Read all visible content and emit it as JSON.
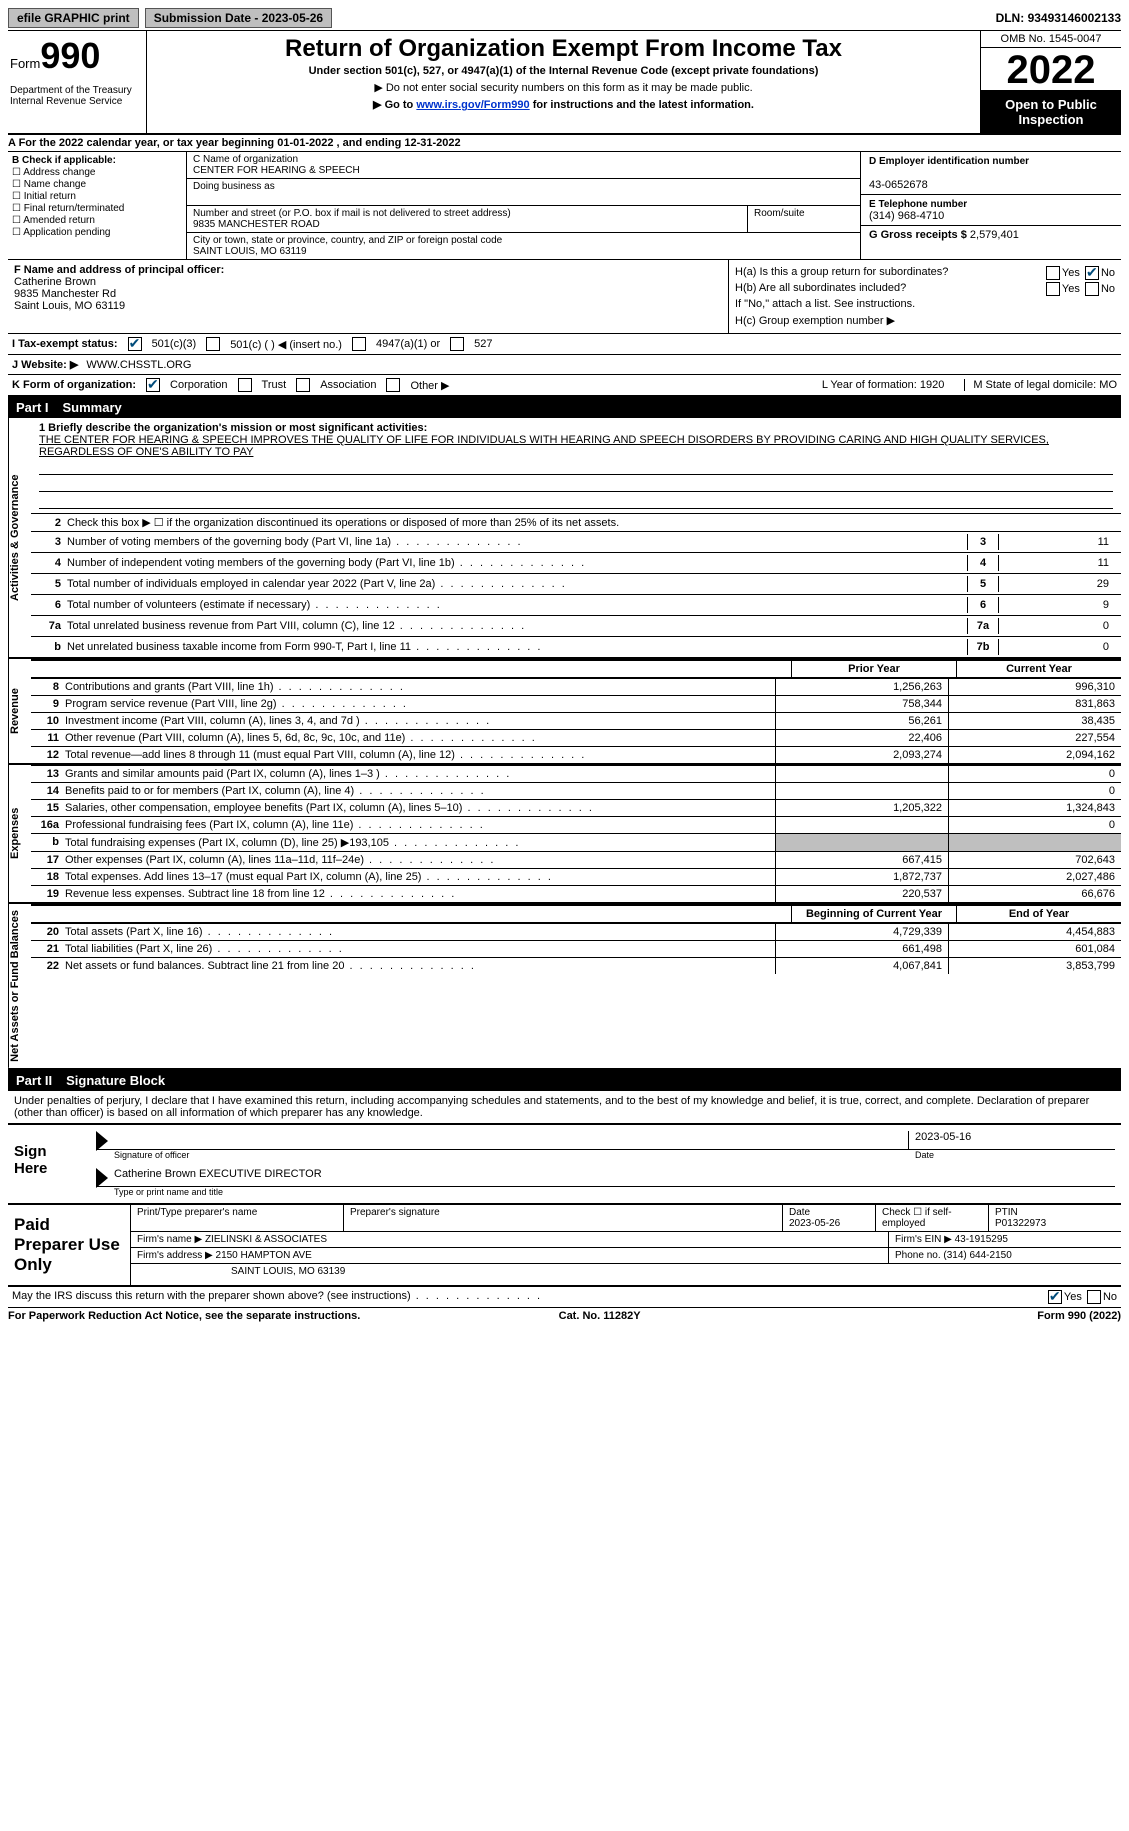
{
  "topbar": {
    "efile": "efile GRAPHIC print",
    "submission_label": "Submission Date - ",
    "submission_date": "2023-05-26",
    "dln_label": "DLN: ",
    "dln": "93493146002133"
  },
  "header": {
    "form_word": "Form",
    "form_num": "990",
    "dept": "Department of the Treasury\nInternal Revenue Service",
    "title": "Return of Organization Exempt From Income Tax",
    "subtitle": "Under section 501(c), 527, or 4947(a)(1) of the Internal Revenue Code (except private foundations)",
    "note1": "▶ Do not enter social security numbers on this form as it may be made public.",
    "note2_pre": "▶ Go to ",
    "note2_link": "www.irs.gov/Form990",
    "note2_post": " for instructions and the latest information.",
    "omb": "OMB No. 1545-0047",
    "year": "2022",
    "otp": "Open to Public Inspection"
  },
  "period": {
    "text_pre": "A For the 2022 calendar year, or tax year beginning ",
    "begin": "01-01-2022",
    "mid": " , and ending ",
    "end": "12-31-2022"
  },
  "boxB": {
    "label": "B Check if applicable:",
    "items": [
      "Address change",
      "Name change",
      "Initial return",
      "Final return/terminated",
      "Amended return",
      "Application pending"
    ]
  },
  "boxC": {
    "name_lbl": "C Name of organization",
    "name": "CENTER FOR HEARING & SPEECH",
    "dba_lbl": "Doing business as",
    "street_lbl": "Number and street (or P.O. box if mail is not delivered to street address)",
    "street": "9835 MANCHESTER ROAD",
    "room_lbl": "Room/suite",
    "city_lbl": "City or town, state or province, country, and ZIP or foreign postal code",
    "city": "SAINT LOUIS, MO  63119"
  },
  "boxD": {
    "ein_lbl": "D Employer identification number",
    "ein": "43-0652678",
    "tel_lbl": "E Telephone number",
    "tel": "(314) 968-4710",
    "gross_lbl": "G Gross receipts $ ",
    "gross": "2,579,401"
  },
  "boxF": {
    "lbl": "F Name and address of principal officer:",
    "name": "Catherine Brown",
    "addr1": "9835 Manchester Rd",
    "addr2": "Saint Louis, MO  63119"
  },
  "boxH": {
    "a": "H(a)  Is this a group return for subordinates?",
    "b": "H(b)  Are all subordinates included?",
    "bnote": "If \"No,\" attach a list. See instructions.",
    "c": "H(c)  Group exemption number ▶"
  },
  "status": {
    "lbl": "I  Tax-exempt status:",
    "opts": [
      "501(c)(3)",
      "501(c) (  ) ◀ (insert no.)",
      "4947(a)(1) or",
      "527"
    ]
  },
  "website": {
    "lbl": "J  Website: ▶",
    "val": "WWW.CHSSTL.ORG"
  },
  "korg": {
    "lbl": "K Form of organization:",
    "opts": [
      "Corporation",
      "Trust",
      "Association",
      "Other ▶"
    ],
    "L": "L Year of formation: 1920",
    "M": "M State of legal domicile: MO"
  },
  "part1": {
    "pn": "Part I",
    "title": "Summary"
  },
  "summary": {
    "l1_lbl": "1  Briefly describe the organization's mission or most significant activities:",
    "l1_text": "THE CENTER FOR HEARING & SPEECH IMPROVES THE QUALITY OF LIFE FOR INDIVIDUALS WITH HEARING AND SPEECH DISORDERS BY PROVIDING CARING AND HIGH QUALITY SERVICES, REGARDLESS OF ONE'S ABILITY TO PAY",
    "l2": "Check this box ▶ ☐ if the organization discontinued its operations or disposed of more than 25% of its net assets.",
    "lines": [
      {
        "n": "3",
        "t": "Number of voting members of the governing body (Part VI, line 1a)",
        "box": "3",
        "v": "11"
      },
      {
        "n": "4",
        "t": "Number of independent voting members of the governing body (Part VI, line 1b)",
        "box": "4",
        "v": "11"
      },
      {
        "n": "5",
        "t": "Total number of individuals employed in calendar year 2022 (Part V, line 2a)",
        "box": "5",
        "v": "29"
      },
      {
        "n": "6",
        "t": "Total number of volunteers (estimate if necessary)",
        "box": "6",
        "v": "9"
      },
      {
        "n": "7a",
        "t": "Total unrelated business revenue from Part VIII, column (C), line 12",
        "box": "7a",
        "v": "0"
      },
      {
        "n": "b",
        "t": "Net unrelated business taxable income from Form 990-T, Part I, line 11",
        "box": "7b",
        "v": "0"
      }
    ]
  },
  "vtabs": {
    "ag": "Activities & Governance",
    "rev": "Revenue",
    "exp": "Expenses",
    "net": "Net Assets or Fund Balances"
  },
  "fin_hdr": {
    "prior": "Prior Year",
    "current": "Current Year"
  },
  "revenue": [
    {
      "n": "8",
      "t": "Contributions and grants (Part VIII, line 1h)",
      "p": "1,256,263",
      "c": "996,310"
    },
    {
      "n": "9",
      "t": "Program service revenue (Part VIII, line 2g)",
      "p": "758,344",
      "c": "831,863"
    },
    {
      "n": "10",
      "t": "Investment income (Part VIII, column (A), lines 3, 4, and 7d )",
      "p": "56,261",
      "c": "38,435"
    },
    {
      "n": "11",
      "t": "Other revenue (Part VIII, column (A), lines 5, 6d, 8c, 9c, 10c, and 11e)",
      "p": "22,406",
      "c": "227,554"
    },
    {
      "n": "12",
      "t": "Total revenue—add lines 8 through 11 (must equal Part VIII, column (A), line 12)",
      "p": "2,093,274",
      "c": "2,094,162"
    }
  ],
  "expenses": [
    {
      "n": "13",
      "t": "Grants and similar amounts paid (Part IX, column (A), lines 1–3 )",
      "p": "",
      "c": "0"
    },
    {
      "n": "14",
      "t": "Benefits paid to or for members (Part IX, column (A), line 4)",
      "p": "",
      "c": "0"
    },
    {
      "n": "15",
      "t": "Salaries, other compensation, employee benefits (Part IX, column (A), lines 5–10)",
      "p": "1,205,322",
      "c": "1,324,843"
    },
    {
      "n": "16a",
      "t": "Professional fundraising fees (Part IX, column (A), line 11e)",
      "p": "",
      "c": "0"
    },
    {
      "n": "b",
      "t": "Total fundraising expenses (Part IX, column (D), line 25) ▶193,105",
      "p": "grey",
      "c": "grey"
    },
    {
      "n": "17",
      "t": "Other expenses (Part IX, column (A), lines 11a–11d, 11f–24e)",
      "p": "667,415",
      "c": "702,643"
    },
    {
      "n": "18",
      "t": "Total expenses. Add lines 13–17 (must equal Part IX, column (A), line 25)",
      "p": "1,872,737",
      "c": "2,027,486"
    },
    {
      "n": "19",
      "t": "Revenue less expenses. Subtract line 18 from line 12",
      "p": "220,537",
      "c": "66,676"
    }
  ],
  "net_hdr": {
    "prior": "Beginning of Current Year",
    "current": "End of Year"
  },
  "net": [
    {
      "n": "20",
      "t": "Total assets (Part X, line 16)",
      "p": "4,729,339",
      "c": "4,454,883"
    },
    {
      "n": "21",
      "t": "Total liabilities (Part X, line 26)",
      "p": "661,498",
      "c": "601,084"
    },
    {
      "n": "22",
      "t": "Net assets or fund balances. Subtract line 21 from line 20",
      "p": "4,067,841",
      "c": "3,853,799"
    }
  ],
  "part2": {
    "pn": "Part II",
    "title": "Signature Block"
  },
  "sig": {
    "decl": "Under penalties of perjury, I declare that I have examined this return, including accompanying schedules and statements, and to the best of my knowledge and belief, it is true, correct, and complete. Declaration of preparer (other than officer) is based on all information of which preparer has any knowledge.",
    "sign_here": "Sign Here",
    "sig_officer": "Signature of officer",
    "date": "Date",
    "sig_date": "2023-05-16",
    "name_title": "Catherine Brown EXECUTIVE DIRECTOR",
    "name_lbl": "Type or print name and title"
  },
  "paid": {
    "title": "Paid Preparer Use Only",
    "r1": {
      "c1": "Print/Type preparer's name",
      "c2": "Preparer's signature",
      "c3": "Date\n2023-05-26",
      "c4": "Check ☐ if self-employed",
      "c5": "PTIN\nP01322973"
    },
    "r2": {
      "c1": "Firm's name    ▶ ZIELINSKI & ASSOCIATES",
      "c2": "Firm's EIN ▶ 43-1915295"
    },
    "r3": {
      "c1": "Firm's address ▶ 2150 HAMPTON AVE",
      "c2": "Phone no. (314) 644-2150"
    },
    "r3b": "SAINT LOUIS, MO  63139"
  },
  "footer": {
    "q": "May the IRS discuss this return with the preparer shown above? (see instructions)",
    "yes": "Yes",
    "no": "No",
    "pra": "For Paperwork Reduction Act Notice, see the separate instructions.",
    "cat": "Cat. No. 11282Y",
    "form": "Form 990 (2022)"
  }
}
